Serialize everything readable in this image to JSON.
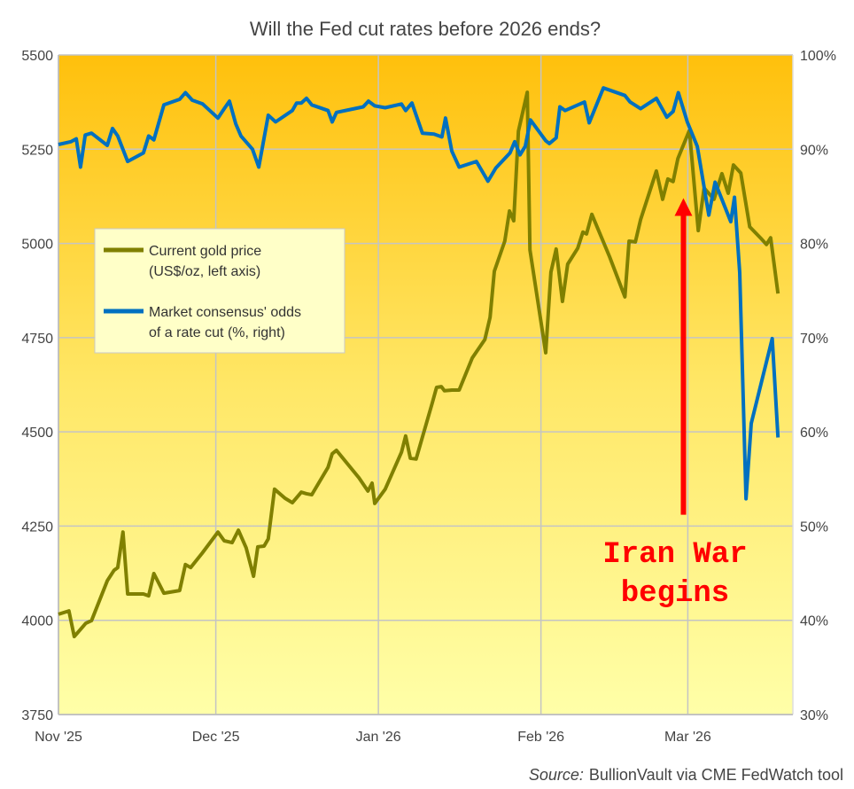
{
  "chart_data": {
    "type": "line",
    "title": "Will the Fed cut rates before 2026 ends?",
    "x_unit": "days since 1 Nov 2025",
    "xlim": [
      0,
      140
    ],
    "x_ticks": [
      {
        "day": 0,
        "label": "Nov '25"
      },
      {
        "day": 30,
        "label": "Dec '25"
      },
      {
        "day": 61,
        "label": "Jan '26"
      },
      {
        "day": 92,
        "label": "Feb '26"
      },
      {
        "day": 120,
        "label": "Mar '26"
      }
    ],
    "y_left": {
      "lim": [
        3750,
        5500
      ],
      "ticks": [
        "3750",
        "4000",
        "4250",
        "4500",
        "4750",
        "5000",
        "5250",
        "5500"
      ]
    },
    "y_right": {
      "lim": [
        30,
        100
      ],
      "ticks": [
        "30%",
        "40%",
        "50%",
        "60%",
        "70%",
        "80%",
        "90%",
        "100%"
      ]
    },
    "grid": true,
    "legend_position": "center-left",
    "series": [
      {
        "name": "Current gold price",
        "legend_line1": "Current gold price",
        "legend_line2": "(US$/oz, left axis)",
        "axis": "left",
        "color": "#808000",
        "points": [
          [
            0,
            4016
          ],
          [
            2,
            4025
          ],
          [
            3,
            3957
          ],
          [
            4.2,
            3976
          ],
          [
            5.2,
            3992
          ],
          [
            6.3,
            3999
          ],
          [
            9.3,
            4105
          ],
          [
            10.6,
            4133
          ],
          [
            11.3,
            4140
          ],
          [
            12.3,
            4234
          ],
          [
            13.2,
            4070
          ],
          [
            16.2,
            4070
          ],
          [
            17.2,
            4065
          ],
          [
            18.2,
            4124
          ],
          [
            20.1,
            4072
          ],
          [
            23.1,
            4079
          ],
          [
            24.2,
            4148
          ],
          [
            25.2,
            4140
          ],
          [
            27.4,
            4178
          ],
          [
            30.4,
            4234
          ],
          [
            31.6,
            4211
          ],
          [
            33.1,
            4206
          ],
          [
            34.3,
            4239
          ],
          [
            35.8,
            4192
          ],
          [
            37.2,
            4117
          ],
          [
            38,
            4195
          ],
          [
            39.2,
            4197
          ],
          [
            40,
            4216
          ],
          [
            41.2,
            4348
          ],
          [
            43.2,
            4324
          ],
          [
            44.6,
            4312
          ],
          [
            46.3,
            4340
          ],
          [
            47.3,
            4336
          ],
          [
            48.3,
            4333
          ],
          [
            51.4,
            4406
          ],
          [
            52.2,
            4442
          ],
          [
            53,
            4451
          ],
          [
            57.3,
            4378
          ],
          [
            59,
            4343
          ],
          [
            59.8,
            4364
          ],
          [
            60.3,
            4310
          ],
          [
            62.3,
            4348
          ],
          [
            65.4,
            4446
          ],
          [
            66.2,
            4489
          ],
          [
            67.1,
            4430
          ],
          [
            68.2,
            4428
          ],
          [
            71.3,
            4578
          ],
          [
            72.1,
            4618
          ],
          [
            73,
            4620
          ],
          [
            73.6,
            4609
          ],
          [
            75,
            4611
          ],
          [
            76.4,
            4611
          ],
          [
            78.9,
            4696
          ],
          [
            81.3,
            4745
          ],
          [
            82.3,
            4804
          ],
          [
            83.1,
            4926
          ],
          [
            85.1,
            5006
          ],
          [
            86,
            5086
          ],
          [
            86.8,
            5060
          ],
          [
            87.7,
            5298
          ],
          [
            89.4,
            5401
          ],
          [
            89.9,
            4983
          ],
          [
            92.9,
            4710
          ],
          [
            93.9,
            4924
          ],
          [
            94.9,
            4985
          ],
          [
            96.1,
            4846
          ],
          [
            97.1,
            4945
          ],
          [
            99,
            4987
          ],
          [
            100,
            5030
          ],
          [
            100.7,
            5025
          ],
          [
            101.7,
            5077
          ],
          [
            105.1,
            4964
          ],
          [
            108,
            4858
          ],
          [
            108.8,
            5006
          ],
          [
            110,
            5004
          ],
          [
            111,
            5063
          ],
          [
            114,
            5192
          ],
          [
            115.2,
            5117
          ],
          [
            116.2,
            5171
          ],
          [
            117.2,
            5164
          ],
          [
            118.1,
            5225
          ],
          [
            120.3,
            5300
          ],
          [
            122,
            5034
          ],
          [
            123.1,
            5147
          ],
          [
            125,
            5117
          ],
          [
            126.5,
            5185
          ],
          [
            127.7,
            5133
          ],
          [
            128.7,
            5208
          ],
          [
            130.1,
            5187
          ],
          [
            131.8,
            5044
          ],
          [
            134.1,
            5011
          ],
          [
            135,
            4997
          ],
          [
            135.8,
            5015
          ],
          [
            137.2,
            4867
          ]
        ]
      },
      {
        "name": "Market consensus' odds of a rate cut",
        "legend_line1": "Market consensus' odds",
        "legend_line2": "of a rate cut (%, right)",
        "axis": "right",
        "color": "#0070c0",
        "points": [
          [
            0,
            90.5
          ],
          [
            2.4,
            90.8
          ],
          [
            3.4,
            91.1
          ],
          [
            4.2,
            88.1
          ],
          [
            5.1,
            91.5
          ],
          [
            6.3,
            91.7
          ],
          [
            9.3,
            90.4
          ],
          [
            10.3,
            92.2
          ],
          [
            11.3,
            91.4
          ],
          [
            13.2,
            88.7
          ],
          [
            16.2,
            89.6
          ],
          [
            17.2,
            91.4
          ],
          [
            18.2,
            91.0
          ],
          [
            20.1,
            94.7
          ],
          [
            23.1,
            95.3
          ],
          [
            24.2,
            96.0
          ],
          [
            25.5,
            95.2
          ],
          [
            27.5,
            94.8
          ],
          [
            30.4,
            93.3
          ],
          [
            31.6,
            94.3
          ],
          [
            32.6,
            95.1
          ],
          [
            33.8,
            92.7
          ],
          [
            34.8,
            91.4
          ],
          [
            37,
            90.0
          ],
          [
            38.2,
            88.1
          ],
          [
            40,
            93.6
          ],
          [
            41.4,
            92.9
          ],
          [
            44.6,
            94.1
          ],
          [
            45.4,
            94.9
          ],
          [
            46.3,
            94.9
          ],
          [
            47.3,
            95.4
          ],
          [
            48.3,
            94.7
          ],
          [
            51.4,
            94.1
          ],
          [
            52.2,
            92.9
          ],
          [
            53,
            93.9
          ],
          [
            58.1,
            94.5
          ],
          [
            59.1,
            95.1
          ],
          [
            60.3,
            94.6
          ],
          [
            62.3,
            94.4
          ],
          [
            65.4,
            94.8
          ],
          [
            66.2,
            94.1
          ],
          [
            67.4,
            94.9
          ],
          [
            69.4,
            91.7
          ],
          [
            71.6,
            91.6
          ],
          [
            73.1,
            91.3
          ],
          [
            73.8,
            93.3
          ],
          [
            75,
            89.8
          ],
          [
            76.4,
            88.1
          ],
          [
            79.7,
            88.7
          ],
          [
            81.9,
            86.6
          ],
          [
            83.4,
            88.0
          ],
          [
            86.1,
            89.6
          ],
          [
            87,
            90.8
          ],
          [
            88,
            89.4
          ],
          [
            89,
            90.3
          ],
          [
            90,
            93.1
          ],
          [
            92.9,
            90.9
          ],
          [
            93.6,
            90.6
          ],
          [
            94.9,
            91.2
          ],
          [
            95.6,
            94.5
          ],
          [
            96.6,
            94.1
          ],
          [
            100.3,
            95.0
          ],
          [
            101.2,
            92.8
          ],
          [
            103.9,
            96.5
          ],
          [
            108,
            95.7
          ],
          [
            109,
            95.0
          ],
          [
            111,
            94.3
          ],
          [
            114,
            95.4
          ],
          [
            116,
            93.4
          ],
          [
            117.2,
            94.0
          ],
          [
            118.2,
            96.0
          ],
          [
            119.9,
            92.9
          ],
          [
            121.8,
            90.3
          ],
          [
            124,
            83.0
          ],
          [
            125.2,
            86.5
          ],
          [
            128.2,
            82.3
          ],
          [
            128.9,
            84.9
          ],
          [
            129.9,
            76.9
          ],
          [
            131.1,
            52.9
          ],
          [
            132.1,
            60.9
          ],
          [
            136.1,
            69.9
          ],
          [
            137.2,
            59.4
          ]
        ]
      }
    ],
    "annotation": {
      "line1": "Iran War",
      "line2": "begins",
      "color": "#ff0000",
      "arrow_day": 119,
      "arrow_from_gold": 4280,
      "arrow_to_gold": 5120
    },
    "source_label": "Source:",
    "source_text": "BullionVault via CME FedWatch tool"
  }
}
